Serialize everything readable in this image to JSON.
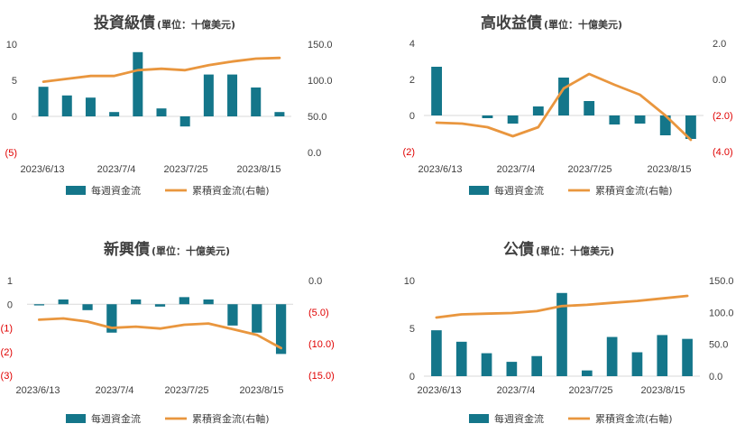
{
  "colors": {
    "bar": "#14768a",
    "line": "#e9963e",
    "axis": "#d9d9d9",
    "text": "#404040",
    "negative": "#e00000"
  },
  "legend": {
    "bar_label": "每週資金流",
    "line_label": "累積資金流(右軸)"
  },
  "chart_data": [
    {
      "type": "bar+line",
      "title": "投資級債",
      "subtitle": "(單位：十億美元)",
      "x_ticks": [
        "2023/6/13",
        "2023/7/4",
        "2023/7/25",
        "2023/8/15"
      ],
      "left_ticks": [
        "10",
        "5",
        "0",
        "(5)"
      ],
      "right_ticks": [
        "150.0",
        "100.0",
        "50.0",
        "0.0"
      ],
      "left_range": [
        -5,
        10
      ],
      "right_range": [
        0,
        150
      ],
      "bars": [
        4.1,
        2.9,
        2.6,
        0.6,
        8.9,
        1.1,
        -1.4,
        5.8,
        5.8,
        4.0,
        0.6
      ],
      "line": [
        98,
        102,
        106,
        106,
        114,
        116,
        114,
        121,
        126,
        130,
        131
      ]
    },
    {
      "type": "bar+line",
      "title": "高收益債",
      "subtitle": "(單位：十億美元)",
      "x_ticks": [
        "2023/6/13",
        "2023/7/4",
        "2023/7/25",
        "2023/8/15"
      ],
      "left_ticks": [
        "4",
        "2",
        "0",
        "(2)"
      ],
      "right_ticks": [
        "2.0",
        "0.0",
        "(2.0)",
        "(4.0)"
      ],
      "left_range": [
        -2,
        4
      ],
      "right_range": [
        -4,
        2
      ],
      "bars": [
        2.7,
        0.0,
        -0.15,
        -0.45,
        0.5,
        2.1,
        0.8,
        -0.5,
        -0.45,
        -1.1,
        -1.3
      ],
      "line": [
        -2.4,
        -2.45,
        -2.65,
        -3.15,
        -2.65,
        -0.5,
        0.3,
        -0.3,
        -0.85,
        -2.0,
        -3.35
      ]
    },
    {
      "type": "bar+line",
      "title": "新興債",
      "subtitle": "(單位：十億美元)",
      "x_ticks": [
        "2023/6/13",
        "2023/7/4",
        "2023/7/25",
        "2023/8/15"
      ],
      "left_ticks": [
        "1",
        "0",
        "(1)",
        "(2)",
        "(3)"
      ],
      "right_ticks": [
        "0.0",
        "(5.0)",
        "(10.0)",
        "(15.0)"
      ],
      "left_range": [
        -3,
        1
      ],
      "right_range": [
        -15,
        0
      ],
      "bars": [
        -0.05,
        0.2,
        -0.25,
        -1.2,
        0.2,
        -0.1,
        0.3,
        0.2,
        -0.9,
        -1.2,
        -2.1
      ],
      "line": [
        -6.2,
        -6.0,
        -6.5,
        -7.5,
        -7.3,
        -7.6,
        -7.0,
        -6.8,
        -7.7,
        -8.6,
        -10.7
      ]
    },
    {
      "type": "bar+line",
      "title": "公債",
      "subtitle": "(單位：十億美元)",
      "x_ticks": [
        "2023/6/13",
        "2023/7/4",
        "2023/7/25",
        "2023/8/15"
      ],
      "left_ticks": [
        "10",
        "5",
        "0"
      ],
      "right_ticks": [
        "150.0",
        "100.0",
        "50.0",
        "0.0"
      ],
      "left_range": [
        0,
        10
      ],
      "right_range": [
        0,
        150
      ],
      "bars": [
        4.8,
        3.6,
        2.4,
        1.5,
        2.1,
        8.7,
        0.6,
        4.1,
        2.5,
        4.3,
        3.9
      ],
      "line": [
        92,
        97,
        98,
        99,
        102,
        110,
        112,
        115,
        118,
        122,
        126
      ]
    }
  ]
}
